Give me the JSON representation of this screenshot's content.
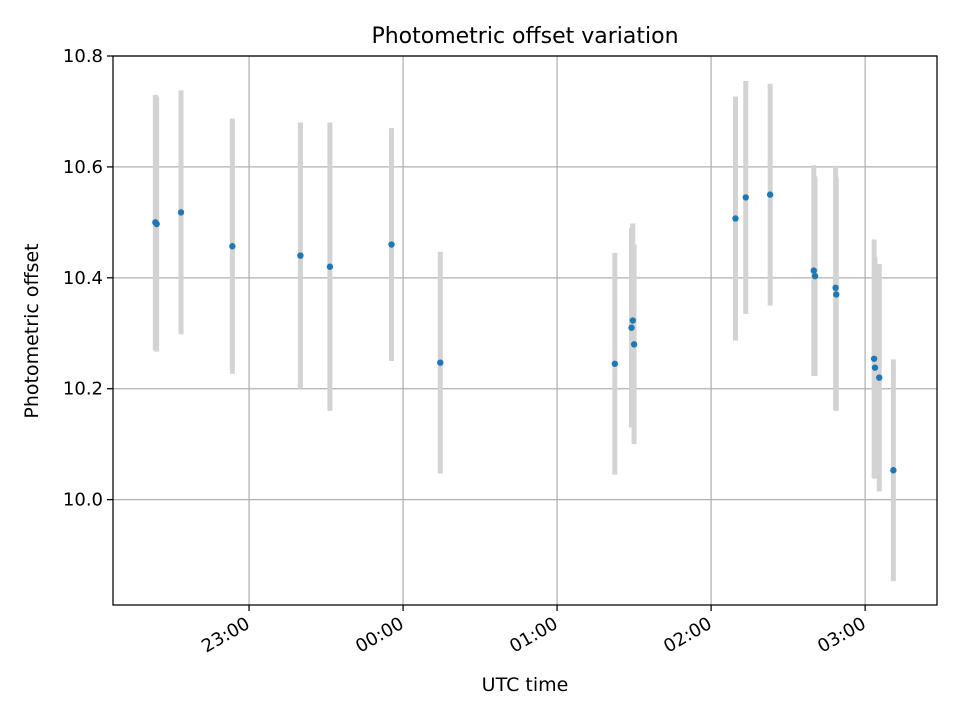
{
  "chart_data": {
    "type": "scatter",
    "title": "Photometric offset variation",
    "xlabel": "UTC time",
    "ylabel": "Photometric offset",
    "x_ticks": [
      "23:00",
      "00:00",
      "01:00",
      "02:00",
      "03:00"
    ],
    "y_ticks": [
      "10.0",
      "10.2",
      "10.4",
      "10.6",
      "10.8"
    ],
    "xlim": [
      "22:07",
      "03:28"
    ],
    "ylim": [
      9.81,
      10.8
    ],
    "grid": true,
    "colors": {
      "point": "#1f77b4",
      "errorbar": "#d3d3d3",
      "grid": "#b0b0b0",
      "axes": "#000000"
    },
    "points": [
      {
        "x": "22:23:30",
        "y": 10.5,
        "err": 0.23
      },
      {
        "x": "22:24:00",
        "y": 10.497,
        "err": 0.23
      },
      {
        "x": "22:33:30",
        "y": 10.518,
        "err": 0.22
      },
      {
        "x": "22:53:30",
        "y": 10.457,
        "err": 0.23
      },
      {
        "x": "23:20:00",
        "y": 10.44,
        "err": 0.24
      },
      {
        "x": "23:31:30",
        "y": 10.42,
        "err": 0.26
      },
      {
        "x": "23:55:30",
        "y": 10.46,
        "err": 0.21
      },
      {
        "x": "00:14:30",
        "y": 10.247,
        "err": 0.2
      },
      {
        "x": "01:22:30",
        "y": 10.245,
        "err": 0.2
      },
      {
        "x": "01:29:00",
        "y": 10.31,
        "err": 0.18
      },
      {
        "x": "01:29:30",
        "y": 10.323,
        "err": 0.175
      },
      {
        "x": "01:30:00",
        "y": 10.28,
        "err": 0.18
      },
      {
        "x": "02:09:30",
        "y": 10.507,
        "err": 0.22
      },
      {
        "x": "02:13:30",
        "y": 10.545,
        "err": 0.21
      },
      {
        "x": "02:23:00",
        "y": 10.55,
        "err": 0.2
      },
      {
        "x": "02:40:00",
        "y": 10.413,
        "err": 0.19
      },
      {
        "x": "02:40:30",
        "y": 10.403,
        "err": 0.18
      },
      {
        "x": "02:48:30",
        "y": 10.382,
        "err": 0.22
      },
      {
        "x": "02:48:45",
        "y": 10.37,
        "err": 0.21
      },
      {
        "x": "03:03:30",
        "y": 10.254,
        "err": 0.215
      },
      {
        "x": "03:03:50",
        "y": 10.238,
        "err": 0.2
      },
      {
        "x": "03:05:30",
        "y": 10.22,
        "err": 0.205
      },
      {
        "x": "03:11:00",
        "y": 10.053,
        "err": 0.2
      }
    ]
  }
}
